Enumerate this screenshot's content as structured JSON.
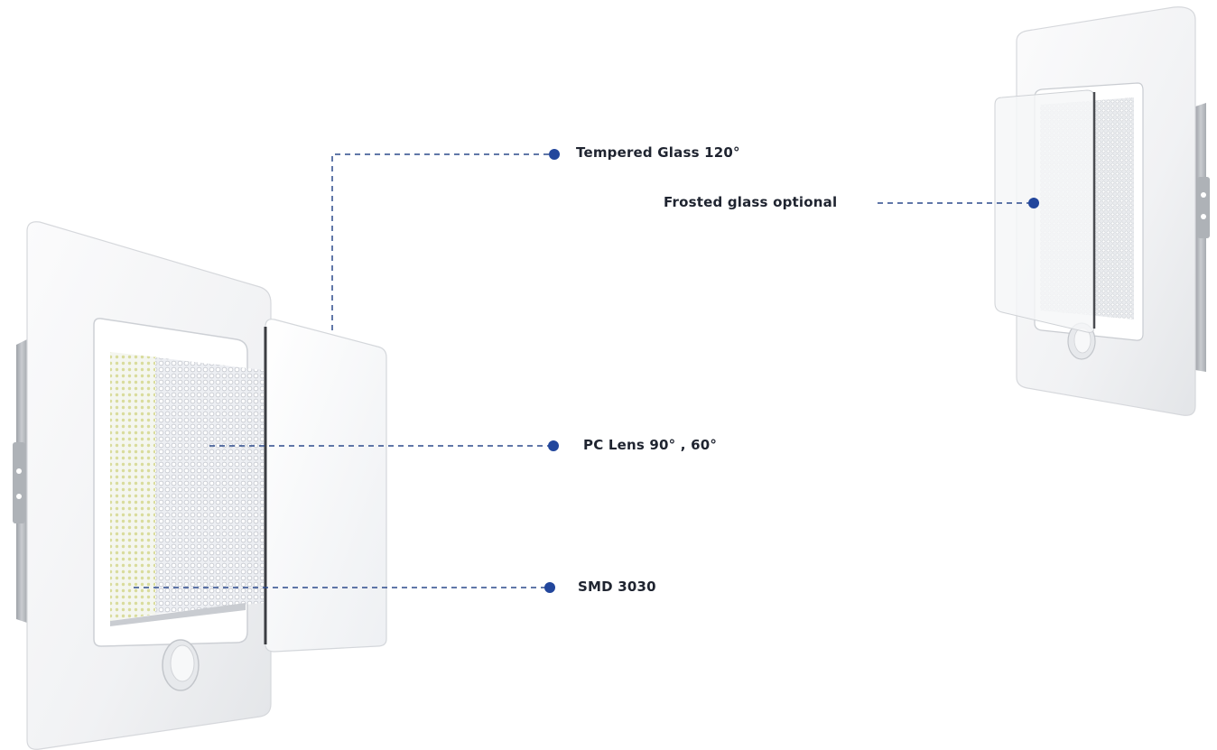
{
  "callouts": {
    "tempered_glass": "Tempered Glass 120°",
    "frosted_glass": "Frosted glass optional",
    "pc_lens": "PC Lens 90° , 60°",
    "smd": "SMD 3030"
  },
  "colors": {
    "callout_line": "#2c4a8c",
    "callout_dot": "#22469c",
    "housing": "#f3f4f6",
    "bracket": "#b9bcc1"
  }
}
